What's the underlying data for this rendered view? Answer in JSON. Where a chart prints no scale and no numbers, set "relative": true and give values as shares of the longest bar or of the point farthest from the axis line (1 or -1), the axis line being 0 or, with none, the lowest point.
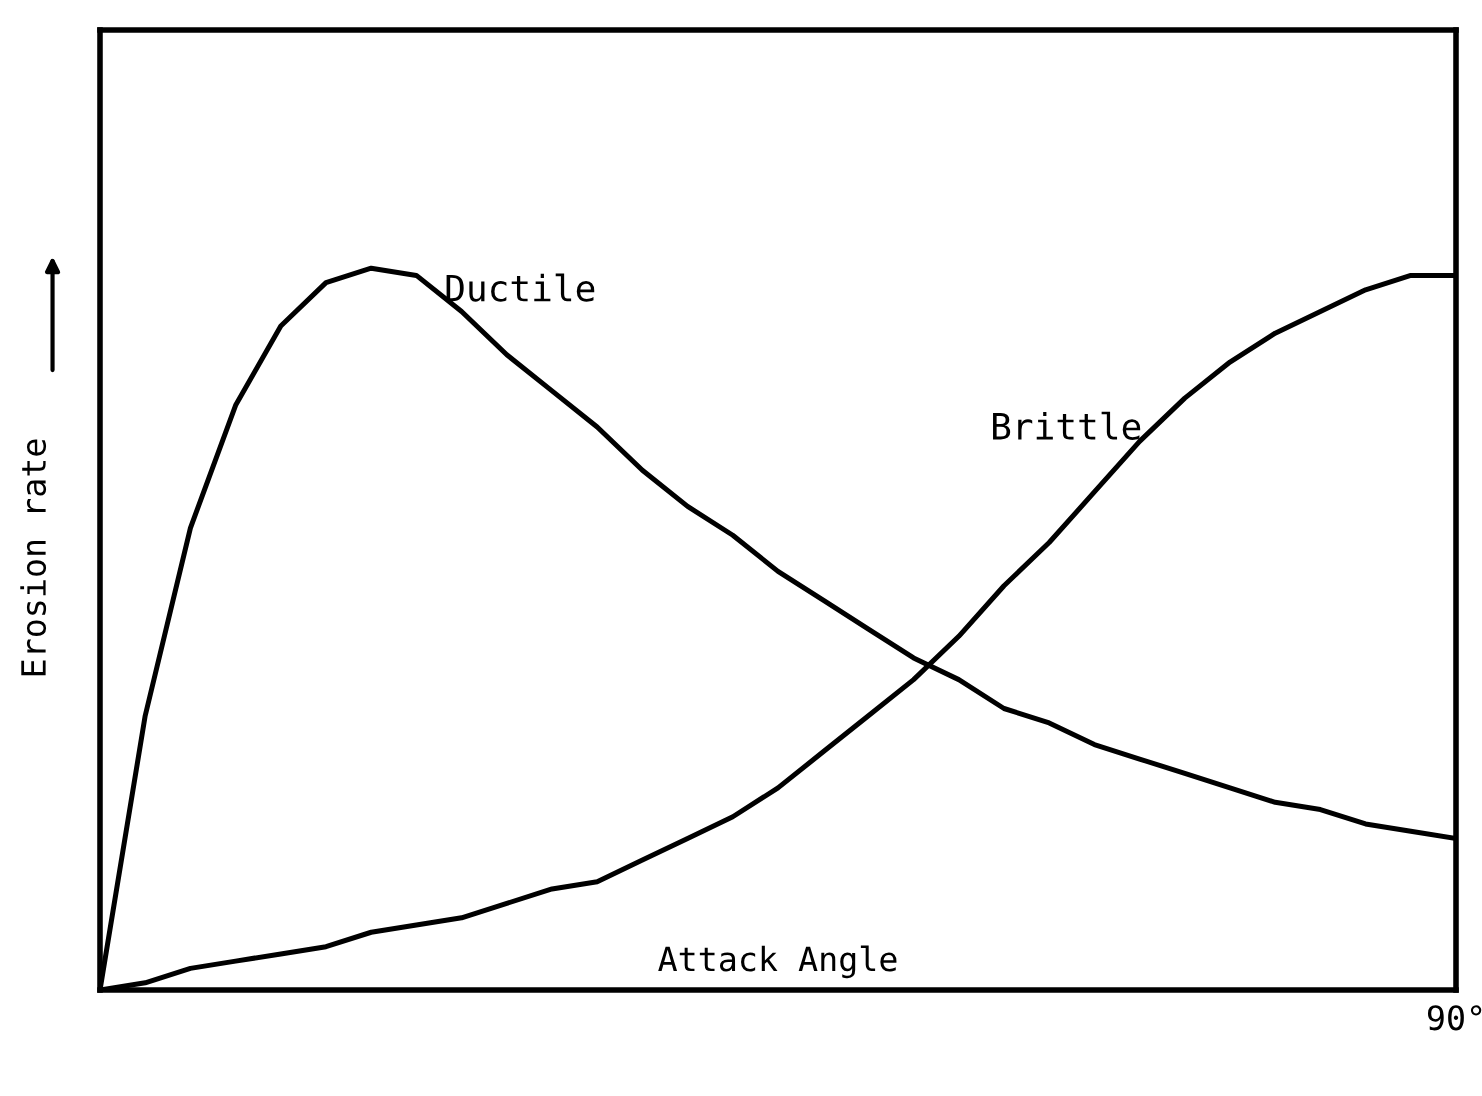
{
  "chart_data": {
    "type": "line",
    "relative": true,
    "xlabel": "Attack Angle",
    "ylabel": "Erosion rate",
    "categories": [
      null,
      null,
      null,
      null,
      null,
      null,
      null,
      null,
      null,
      null,
      null,
      null,
      null,
      null,
      null,
      null,
      null,
      null,
      null,
      null,
      null,
      null,
      null,
      null,
      null,
      null,
      null,
      null,
      null,
      null,
      null
    ],
    "annotations": [
      "90°"
    ],
    "series": [
      {
        "name": "Ductile",
        "color": "#000000",
        "values": [
          0,
          0.38,
          0.64,
          0.81,
          0.92,
          0.98,
          1,
          0.99,
          0.94,
          0.88,
          0.83,
          0.78,
          0.72,
          0.67,
          0.63,
          0.58,
          0.54,
          0.5,
          0.46,
          0.43,
          0.39,
          0.37,
          0.34,
          0.32,
          0.3,
          0.28,
          0.26,
          0.25,
          0.23,
          0.22,
          0.21
        ]
      },
      {
        "name": "Brittle",
        "color": "#000000",
        "values": [
          0,
          0.01,
          0.03,
          0.04,
          0.05,
          0.06,
          0.08,
          0.09,
          0.1,
          0.12,
          0.14,
          0.15,
          0.18,
          0.21,
          0.24,
          0.28,
          0.33,
          0.38,
          0.43,
          0.49,
          0.56,
          0.62,
          0.69,
          0.76,
          0.82,
          0.87,
          0.91,
          0.94,
          0.97,
          0.99,
          0.99
        ]
      }
    ],
    "tick_labels": false,
    "grid": false,
    "legend": false,
    "marker": "none",
    "line_style": "solid"
  }
}
